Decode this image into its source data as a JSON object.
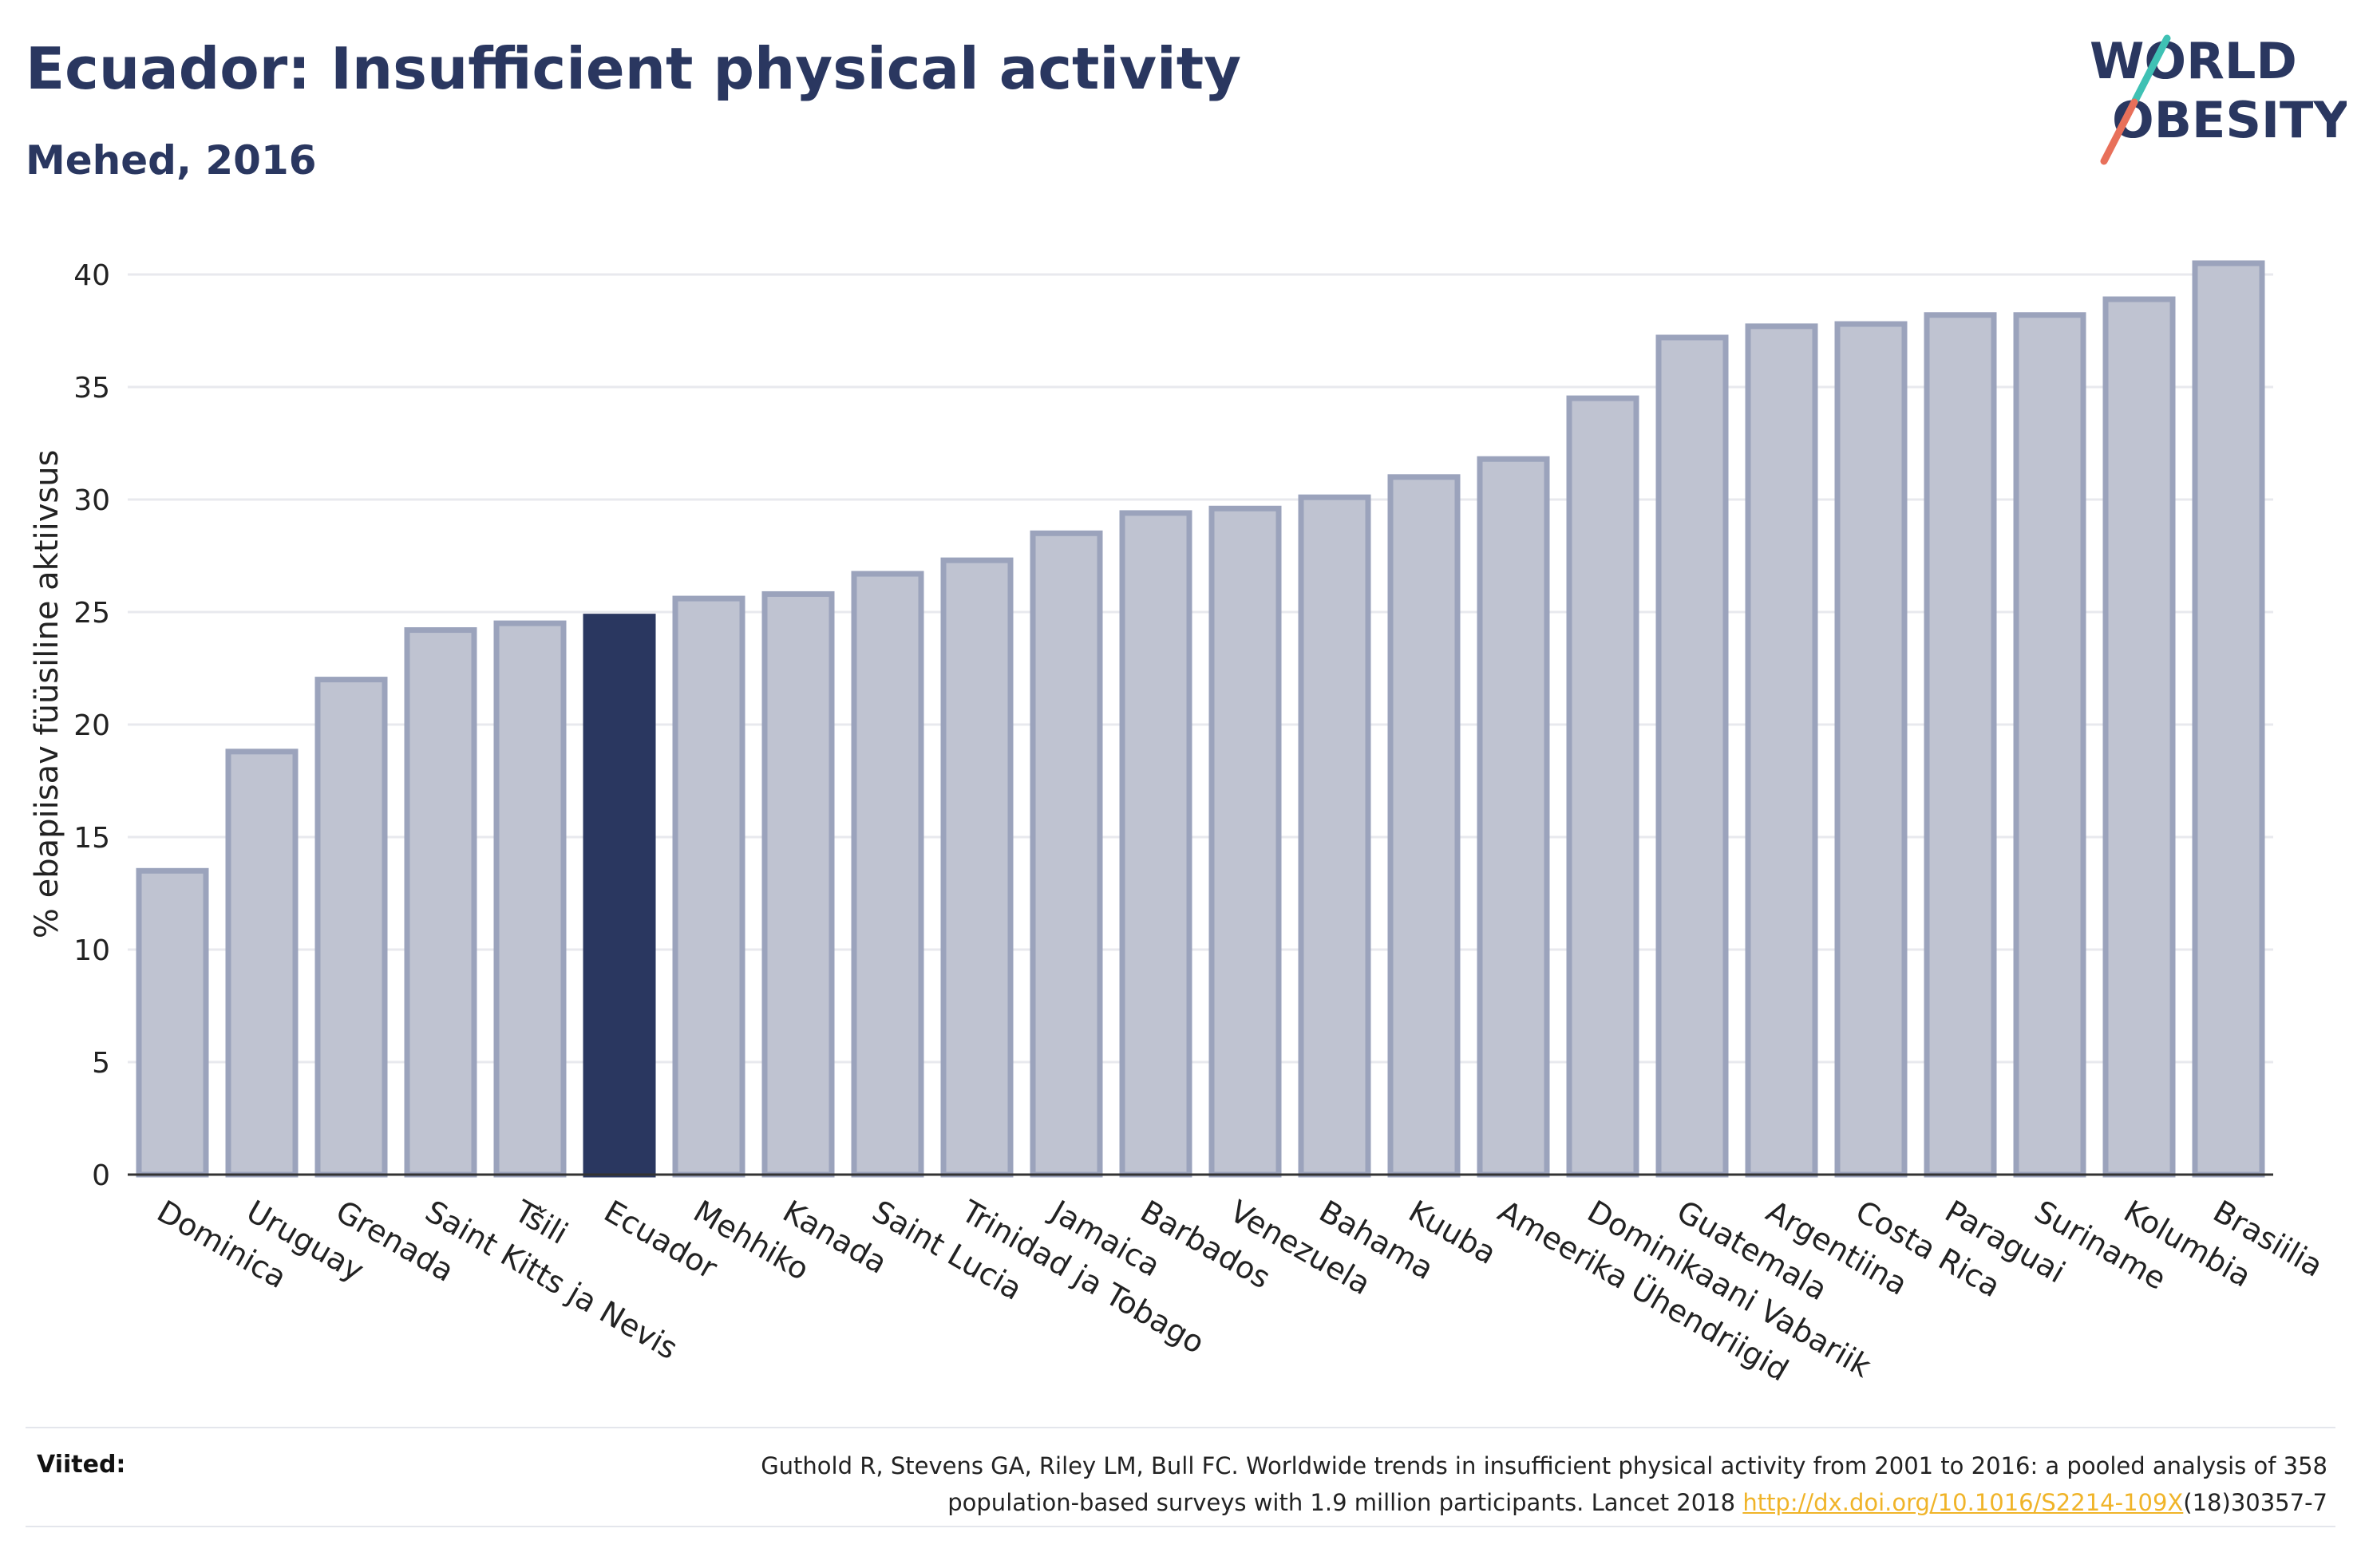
{
  "header": {
    "title": "Ecuador: Insufficient physical activity",
    "subtitle": "Mehed, 2016"
  },
  "logo": {
    "line1": "WORLD",
    "line2": "OBESITY",
    "text_color": "#2a3760",
    "slash_colors": [
      "#3fc1b4",
      "#e8705a"
    ]
  },
  "footer": {
    "label": "Viited:",
    "citation_line1": "Guthold R, Stevens GA, Riley LM, Bull FC. Worldwide trends in insufficient physical activity from 2001 to 2016: a pooled analysis of 358",
    "citation_line2_prefix": "population-based surveys with 1.9 million participants. Lancet 2018 ",
    "citation_link": "http://dx.doi.org/10.1016/S2214-109X",
    "citation_line2_suffix": "(18)30357-7"
  },
  "colors": {
    "bar_fill": "#bfc3d1",
    "bar_stroke": "#9ba3bc",
    "highlight_fill": "#2a3760",
    "grid": "#e8e9ee",
    "axis": "#333333",
    "text": "#222222"
  },
  "chart_data": {
    "type": "bar",
    "title": "Ecuador: Insufficient physical activity",
    "subtitle": "Mehed, 2016",
    "xlabel": "",
    "ylabel": "% ebapiisav füüsiline aktiivsus",
    "ylim": [
      0,
      42
    ],
    "yticks": [
      0,
      5,
      10,
      15,
      20,
      25,
      30,
      35,
      40
    ],
    "grid": true,
    "highlight": "Ecuador",
    "categories": [
      "Dominica",
      "Uruguay",
      "Grenada",
      "Saint Kitts ja Nevis",
      "Tšili",
      "Ecuador",
      "Mehhiko",
      "Kanada",
      "Saint Lucia",
      "Trinidad ja Tobago",
      "Jamaica",
      "Barbados",
      "Venezuela",
      "Bahama",
      "Kuuba",
      "Ameerika Ühendriigid",
      "Dominikaani Vabariik",
      "Guatemala",
      "Argentiina",
      "Costa Rica",
      "Paraguai",
      "Suriname",
      "Kolumbia",
      "Brasiilia"
    ],
    "values": [
      13.5,
      18.8,
      22.0,
      24.2,
      24.5,
      24.8,
      25.6,
      25.8,
      26.7,
      27.3,
      28.5,
      29.4,
      29.6,
      30.1,
      31.0,
      31.8,
      34.5,
      37.2,
      37.7,
      37.8,
      38.2,
      38.2,
      38.9,
      40.5
    ]
  }
}
